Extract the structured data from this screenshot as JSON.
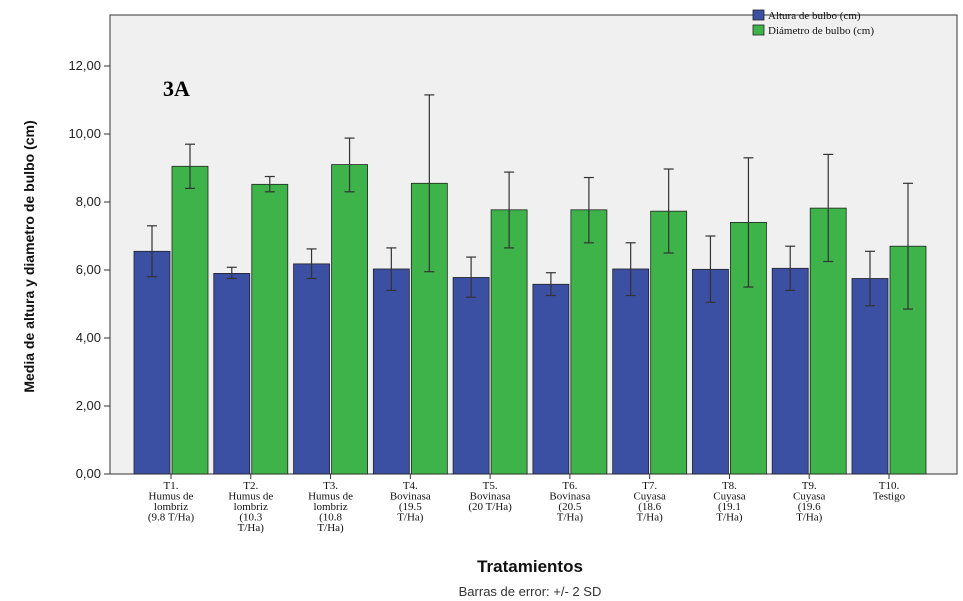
{
  "chart_data": {
    "type": "bar",
    "panel_label": "3A",
    "ylabel": "Media de altura y diametro de bulbo (cm)",
    "xlabel": "Tratamientos",
    "footnote": "Barras de error: +/- 2 SD",
    "ylim": [
      0,
      13.5
    ],
    "yticks": [
      "0,00",
      "2,00",
      "4,00",
      "6,00",
      "8,00",
      "10,00",
      "12,00"
    ],
    "ytick_values": [
      0,
      2,
      4,
      6,
      8,
      10,
      12
    ],
    "legend_position": "top-right",
    "categories": [
      [
        "T1.",
        "Humus de",
        "lombriz",
        "(9.8 T/Ha)"
      ],
      [
        "T2.",
        "Humus de",
        "lombriz",
        "(10.3",
        "T/Ha)"
      ],
      [
        "T3.",
        "Humus de",
        "lombriz",
        "(10.8",
        "T/Ha)"
      ],
      [
        "T4.",
        "Bovinasa",
        "(19.5",
        "T/Ha)"
      ],
      [
        "T5.",
        "Bovinasa",
        "(20 T/Ha)"
      ],
      [
        "T6.",
        "Bovinasa",
        "(20.5",
        "T/Ha)"
      ],
      [
        "T7.",
        "Cuyasa",
        "(18.6",
        "T/Ha)"
      ],
      [
        "T8.",
        "Cuyasa",
        "(19.1",
        "T/Ha)"
      ],
      [
        "T9.",
        "Cuyasa",
        "(19.6",
        "T/Ha)"
      ],
      [
        "T10.",
        "Testigo"
      ]
    ],
    "series": [
      {
        "name": "Altura de bulbo (cm)",
        "color": "#3b4fa3",
        "values": [
          6.55,
          5.9,
          6.18,
          6.03,
          5.78,
          5.58,
          6.03,
          6.02,
          6.05,
          5.75
        ],
        "err_low": [
          5.8,
          5.75,
          5.75,
          5.4,
          5.2,
          5.25,
          5.25,
          5.05,
          5.4,
          4.95
        ],
        "err_high": [
          7.3,
          6.08,
          6.62,
          6.65,
          6.38,
          5.92,
          6.8,
          7.0,
          6.7,
          6.55
        ]
      },
      {
        "name": "Diámetro de bulbo (cm)",
        "color": "#3db34a",
        "values": [
          9.05,
          8.52,
          9.1,
          8.55,
          7.77,
          7.77,
          7.73,
          7.4,
          7.82,
          6.7
        ],
        "err_low": [
          8.4,
          8.3,
          8.3,
          5.95,
          6.65,
          6.8,
          6.5,
          5.5,
          6.25,
          4.85
        ],
        "err_high": [
          9.7,
          8.75,
          9.88,
          11.15,
          8.88,
          8.72,
          8.97,
          9.3,
          9.4,
          8.55
        ]
      }
    ]
  }
}
